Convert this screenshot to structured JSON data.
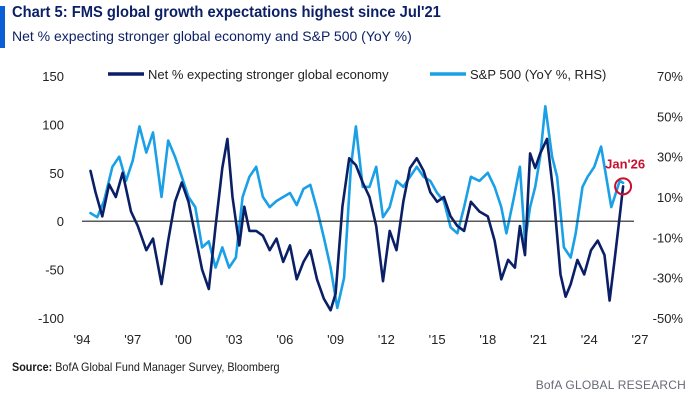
{
  "header": {
    "title": "Chart 5: FMS global growth expectations highest since Jul'21",
    "subtitle": "Net % expecting stronger global economy and S&P 500 (YoY %)"
  },
  "footer": {
    "source_label": "Source:",
    "source_text": "BofA Global Fund Manager Survey, Bloomberg",
    "brand": "BofA GLOBAL RESEARCH"
  },
  "colors": {
    "title": "#0b1f66",
    "accent": "#0b5fd6",
    "series_net": "#0b1f66",
    "series_spx": "#1aa0e6",
    "marker": "#c8102e"
  },
  "chart_data": {
    "type": "line",
    "title": "",
    "xlabel": "",
    "ylabel": "",
    "x_ticks": [
      "'94",
      "'97",
      "'00",
      "'03",
      "'06",
      "'09",
      "'12",
      "'15",
      "'18",
      "'21",
      "'24",
      "'27"
    ],
    "x_tick_years": [
      1994,
      1997,
      2000,
      2003,
      2006,
      2009,
      2012,
      2015,
      2018,
      2021,
      2024,
      2027
    ],
    "xlim": [
      1994,
      2027
    ],
    "y_left_ticks": [
      "150",
      "100",
      "50",
      "0",
      "-50",
      "-100"
    ],
    "y_left_values": [
      150,
      100,
      50,
      0,
      -50,
      -100
    ],
    "ylim_left": [
      -100,
      150
    ],
    "y_right_ticks": [
      "70%",
      "50%",
      "30%",
      "10%",
      "-10%",
      "-30%",
      "-50%"
    ],
    "y_right_values": [
      70,
      50,
      30,
      10,
      -10,
      -30,
      -50
    ],
    "ylim_right": [
      -50,
      70
    ],
    "legend_position": "top",
    "annotation": {
      "label": "Jan'26",
      "x": 2026.0,
      "y_left": 36
    },
    "series": [
      {
        "name": "Net % expecting stronger global economy",
        "axis": "left",
        "color": "#0b1f66",
        "points": [
          [
            1994.5,
            52
          ],
          [
            1994.8,
            30
          ],
          [
            1995.2,
            5
          ],
          [
            1995.6,
            38
          ],
          [
            1996.0,
            25
          ],
          [
            1996.4,
            50
          ],
          [
            1996.9,
            10
          ],
          [
            1997.3,
            -5
          ],
          [
            1997.8,
            -30
          ],
          [
            1998.2,
            -18
          ],
          [
            1998.7,
            -65
          ],
          [
            1999.1,
            -20
          ],
          [
            1999.5,
            20
          ],
          [
            1999.9,
            40
          ],
          [
            2000.3,
            20
          ],
          [
            2000.7,
            -15
          ],
          [
            2001.1,
            -50
          ],
          [
            2001.5,
            -70
          ],
          [
            2001.9,
            -5
          ],
          [
            2002.3,
            55
          ],
          [
            2002.6,
            85
          ],
          [
            2002.9,
            25
          ],
          [
            2003.3,
            -25
          ],
          [
            2003.6,
            15
          ],
          [
            2003.9,
            -10
          ],
          [
            2004.3,
            -10
          ],
          [
            2004.7,
            -15
          ],
          [
            2005.1,
            -30
          ],
          [
            2005.5,
            -18
          ],
          [
            2005.9,
            -42
          ],
          [
            2006.3,
            -25
          ],
          [
            2006.7,
            -60
          ],
          [
            2007.1,
            -42
          ],
          [
            2007.5,
            -30
          ],
          [
            2007.9,
            -60
          ],
          [
            2008.3,
            -80
          ],
          [
            2008.7,
            -92
          ],
          [
            2009.0,
            -75
          ],
          [
            2009.4,
            15
          ],
          [
            2009.8,
            65
          ],
          [
            2010.2,
            58
          ],
          [
            2010.6,
            40
          ],
          [
            2011.0,
            25
          ],
          [
            2011.4,
            -5
          ],
          [
            2011.8,
            -62
          ],
          [
            2012.2,
            -10
          ],
          [
            2012.6,
            -30
          ],
          [
            2013.0,
            20
          ],
          [
            2013.4,
            55
          ],
          [
            2013.8,
            65
          ],
          [
            2014.2,
            52
          ],
          [
            2014.6,
            30
          ],
          [
            2015.0,
            20
          ],
          [
            2015.4,
            25
          ],
          [
            2015.8,
            5
          ],
          [
            2016.2,
            -5
          ],
          [
            2016.6,
            -10
          ],
          [
            2017.0,
            20
          ],
          [
            2017.5,
            10
          ],
          [
            2018.0,
            5
          ],
          [
            2018.4,
            -20
          ],
          [
            2018.8,
            -60
          ],
          [
            2019.2,
            -40
          ],
          [
            2019.6,
            -48
          ],
          [
            2019.9,
            -5
          ],
          [
            2020.2,
            -35
          ],
          [
            2020.5,
            70
          ],
          [
            2020.8,
            55
          ],
          [
            2021.1,
            70
          ],
          [
            2021.5,
            85
          ],
          [
            2021.9,
            25
          ],
          [
            2022.3,
            -55
          ],
          [
            2022.6,
            -78
          ],
          [
            2022.9,
            -65
          ],
          [
            2023.3,
            -40
          ],
          [
            2023.7,
            -55
          ],
          [
            2024.1,
            -30
          ],
          [
            2024.5,
            -20
          ],
          [
            2024.9,
            -35
          ],
          [
            2025.2,
            -82
          ],
          [
            2025.5,
            -40
          ],
          [
            2025.8,
            5
          ],
          [
            2026.0,
            36
          ]
        ]
      },
      {
        "name": "S&P 500 (YoY %, RHS)",
        "axis": "right",
        "color": "#1aa0e6",
        "points": [
          [
            1994.5,
            2
          ],
          [
            1994.9,
            0
          ],
          [
            1995.3,
            8
          ],
          [
            1995.8,
            25
          ],
          [
            1996.2,
            30
          ],
          [
            1996.6,
            18
          ],
          [
            1997.0,
            28
          ],
          [
            1997.4,
            45
          ],
          [
            1997.8,
            32
          ],
          [
            1998.2,
            42
          ],
          [
            1998.7,
            10
          ],
          [
            1999.1,
            38
          ],
          [
            1999.5,
            30
          ],
          [
            1999.9,
            20
          ],
          [
            2000.3,
            10
          ],
          [
            2000.7,
            5
          ],
          [
            2001.1,
            -15
          ],
          [
            2001.5,
            -12
          ],
          [
            2001.9,
            -25
          ],
          [
            2002.3,
            -15
          ],
          [
            2002.7,
            -25
          ],
          [
            2003.1,
            -20
          ],
          [
            2003.5,
            10
          ],
          [
            2003.9,
            20
          ],
          [
            2004.3,
            25
          ],
          [
            2004.7,
            10
          ],
          [
            2005.1,
            5
          ],
          [
            2005.5,
            8
          ],
          [
            2005.9,
            10
          ],
          [
            2006.3,
            12
          ],
          [
            2006.7,
            6
          ],
          [
            2007.1,
            14
          ],
          [
            2007.5,
            16
          ],
          [
            2007.9,
            4
          ],
          [
            2008.3,
            -10
          ],
          [
            2008.7,
            -25
          ],
          [
            2009.1,
            -45
          ],
          [
            2009.5,
            -30
          ],
          [
            2009.9,
            25
          ],
          [
            2010.2,
            45
          ],
          [
            2010.6,
            15
          ],
          [
            2011.0,
            15
          ],
          [
            2011.4,
            25
          ],
          [
            2011.8,
            0
          ],
          [
            2012.2,
            5
          ],
          [
            2012.6,
            18
          ],
          [
            2013.0,
            15
          ],
          [
            2013.4,
            20
          ],
          [
            2013.8,
            25
          ],
          [
            2014.2,
            20
          ],
          [
            2014.6,
            18
          ],
          [
            2015.0,
            12
          ],
          [
            2015.4,
            8
          ],
          [
            2015.8,
            -5
          ],
          [
            2016.2,
            -8
          ],
          [
            2016.6,
            5
          ],
          [
            2017.0,
            20
          ],
          [
            2017.5,
            18
          ],
          [
            2018.0,
            22
          ],
          [
            2018.4,
            15
          ],
          [
            2018.8,
            5
          ],
          [
            2019.1,
            -8
          ],
          [
            2019.5,
            8
          ],
          [
            2019.9,
            25
          ],
          [
            2020.2,
            -12
          ],
          [
            2020.5,
            5
          ],
          [
            2020.8,
            15
          ],
          [
            2021.1,
            30
          ],
          [
            2021.4,
            55
          ],
          [
            2021.8,
            30
          ],
          [
            2022.1,
            20
          ],
          [
            2022.5,
            -15
          ],
          [
            2022.9,
            -20
          ],
          [
            2023.2,
            -8
          ],
          [
            2023.6,
            15
          ],
          [
            2023.9,
            20
          ],
          [
            2024.3,
            25
          ],
          [
            2024.7,
            35
          ],
          [
            2025.0,
            20
          ],
          [
            2025.3,
            5
          ],
          [
            2025.5,
            10
          ],
          [
            2025.8,
            18
          ],
          [
            2026.0,
            17
          ]
        ]
      }
    ]
  }
}
